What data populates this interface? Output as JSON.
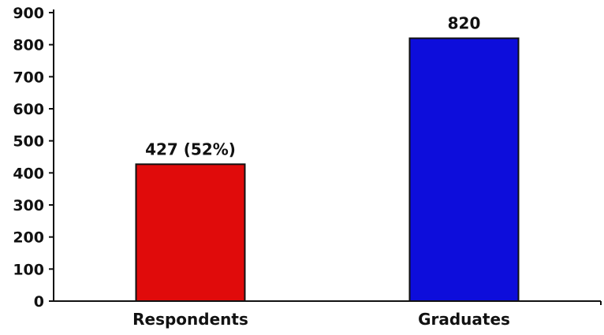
{
  "chart_data": {
    "type": "bar",
    "categories": [
      "Respondents",
      "Graduates"
    ],
    "values": [
      427,
      820
    ],
    "data_labels": [
      "427 (52%)",
      "820"
    ],
    "colors": [
      "#e00b0b",
      "#0d0ddb"
    ],
    "ylim": [
      0,
      900
    ],
    "yticks": [
      0,
      100,
      200,
      300,
      400,
      500,
      600,
      700,
      800,
      900
    ],
    "grid": false,
    "legend": "none"
  }
}
